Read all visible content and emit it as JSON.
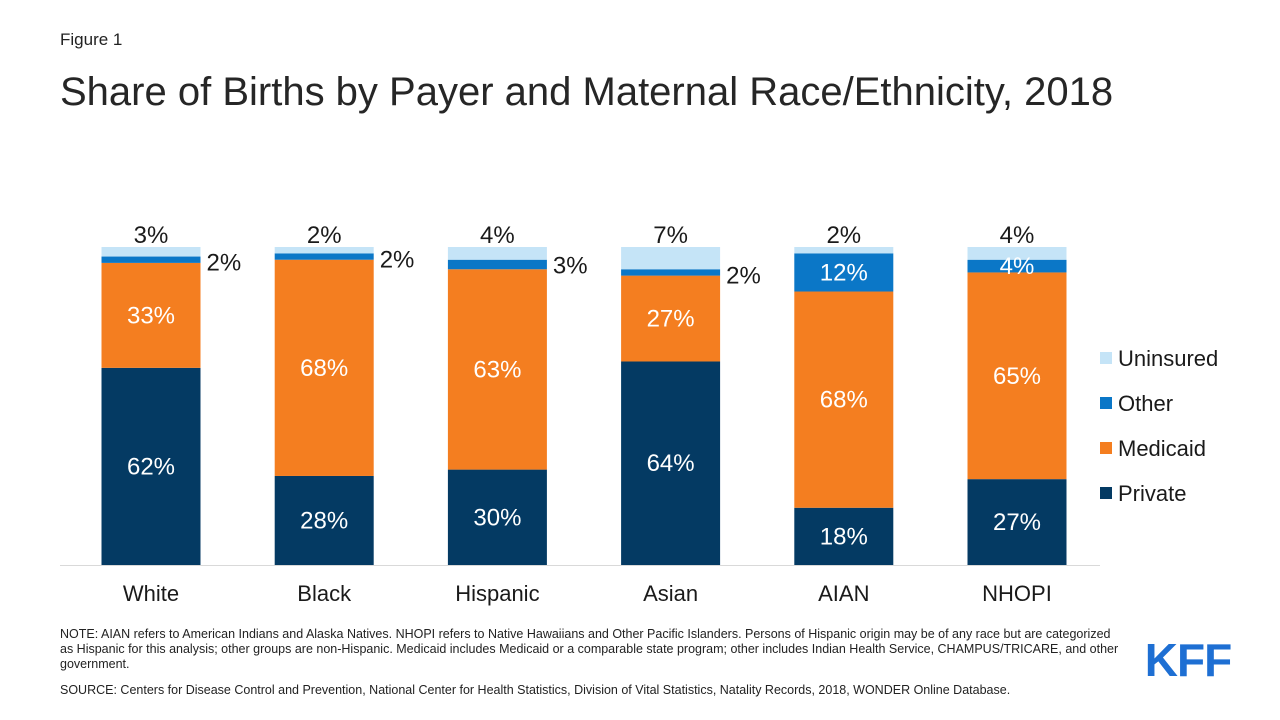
{
  "figure_label": "Figure 1",
  "title": "Share of Births by Payer and Maternal Race/Ethnicity, 2018",
  "note": "NOTE: AIAN  refers to American Indians and Alaska Natives. NHOPI  refers to Native Hawaiians  and Other Pacific Islanders. Persons of Hispanic origin may be of any race but are categorized as Hispanic  for this analysis; other groups are non-Hispanic. Medicaid  includes Medicaid or a comparable state program; other includes Indian Health Service, CHAMPUS/TRICARE,   and other government.",
  "source": "SOURCE:  Centers for Disease Control and Prevention, National Center for Health Statistics, Division of Vital Statistics, Natality Records, 2018, WONDER Online Database.",
  "logo_text": "KFF",
  "colors": {
    "uninsured": "#c5e4f7",
    "other": "#0b77c7",
    "medicaid": "#f47e20",
    "private": "#043a63",
    "brand": "#1e6fd3"
  },
  "chart_data": {
    "type": "bar",
    "stacked": true,
    "categories": [
      "White",
      "Black",
      "Hispanic",
      "Asian",
      "AIAN",
      "NHOPI"
    ],
    "series": [
      {
        "name": "Private",
        "values": [
          62,
          28,
          30,
          64,
          18,
          27
        ],
        "labels": [
          "62%",
          "28%",
          "30%",
          "64%",
          "18%",
          "27%"
        ]
      },
      {
        "name": "Medicaid",
        "values": [
          33,
          68,
          63,
          27,
          68,
          65
        ],
        "labels": [
          "33%",
          "68%",
          "63%",
          "27%",
          "68%",
          "65%"
        ]
      },
      {
        "name": "Other",
        "values": [
          2,
          2,
          3,
          2,
          12,
          4
        ],
        "labels": [
          "2%",
          "2%",
          "3%",
          "2%",
          "12%",
          "4%"
        ]
      },
      {
        "name": "Uninsured",
        "values": [
          3,
          2,
          4,
          7,
          2,
          4
        ],
        "labels": [
          "3%",
          "2%",
          "4%",
          "7%",
          "2%",
          "4%"
        ]
      }
    ],
    "legend": [
      "Uninsured",
      "Other",
      "Medicaid",
      "Private"
    ],
    "legend_position": "right",
    "ylim": [
      0,
      100
    ],
    "grid": false
  }
}
